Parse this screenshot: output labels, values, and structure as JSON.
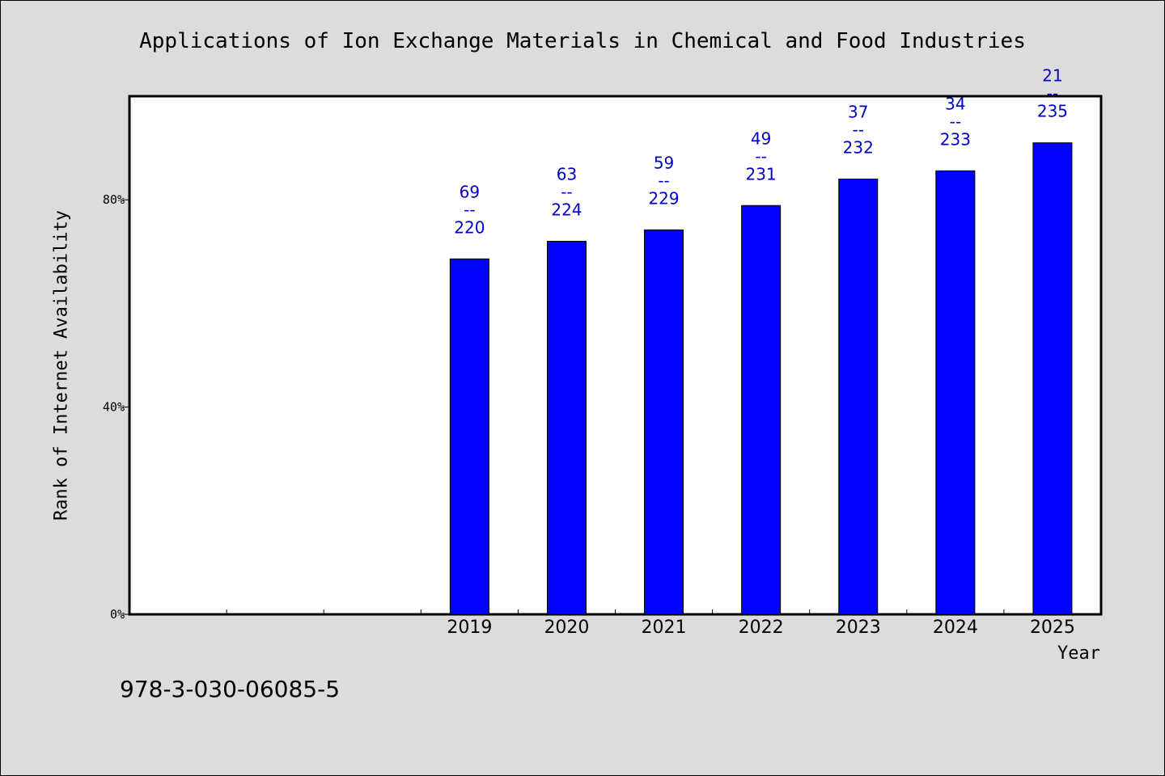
{
  "chart_data": {
    "type": "bar",
    "title": "Applications of Ion Exchange Materials in Chemical and Food Industries",
    "xlabel": "Year",
    "ylabel": "Rank of Internet Availability",
    "categories": [
      "",
      "",
      "",
      "2019",
      "2020",
      "2021",
      "2022",
      "2023",
      "2024",
      "2025"
    ],
    "values": [
      null,
      null,
      null,
      68.6,
      72.0,
      74.2,
      78.9,
      84.0,
      85.6,
      91.0
    ],
    "data_labels": [
      null,
      null,
      null,
      {
        "top": "69",
        "sep": "--",
        "bottom": "220"
      },
      {
        "top": "63",
        "sep": "--",
        "bottom": "224"
      },
      {
        "top": "59",
        "sep": "--",
        "bottom": "229"
      },
      {
        "top": "49",
        "sep": "--",
        "bottom": "231"
      },
      {
        "top": "37",
        "sep": "--",
        "bottom": "232"
      },
      {
        "top": "34",
        "sep": "--",
        "bottom": "233"
      },
      {
        "top": "21",
        "sep": "--",
        "bottom": "235"
      }
    ],
    "ylim": [
      0,
      100
    ],
    "yticks": [
      0,
      40,
      80
    ],
    "ytick_labels": [
      "0%",
      "40%",
      "80%"
    ],
    "grid": false,
    "bar_color": "#0000ff",
    "label_color": "#0000cc"
  },
  "footer": {
    "isbn": "978-3-030-06085-5"
  }
}
